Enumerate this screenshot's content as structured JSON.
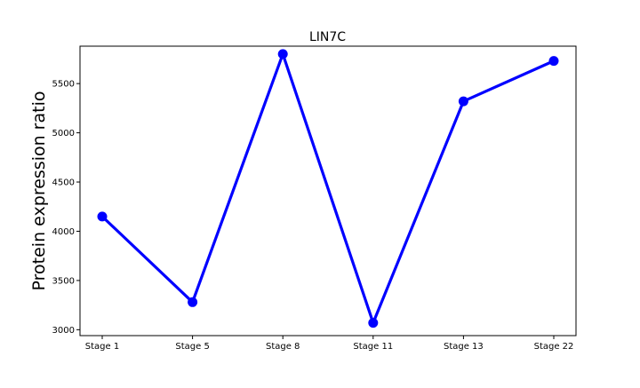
{
  "chart_data": {
    "type": "line",
    "title": "LIN7C",
    "xlabel": "",
    "ylabel": "Protein expression ratio",
    "categories": [
      "Stage 1",
      "Stage 5",
      "Stage 8",
      "Stage 11",
      "Stage 13",
      "Stage 22"
    ],
    "series": [
      {
        "values": [
          4150,
          3280,
          5800,
          3070,
          5320,
          5730
        ]
      }
    ],
    "yticks": [
      3000,
      3500,
      4000,
      4500,
      5000,
      5500
    ],
    "ylim": [
      2940,
      5880
    ],
    "grid": false,
    "line_color": "#0000ff"
  }
}
